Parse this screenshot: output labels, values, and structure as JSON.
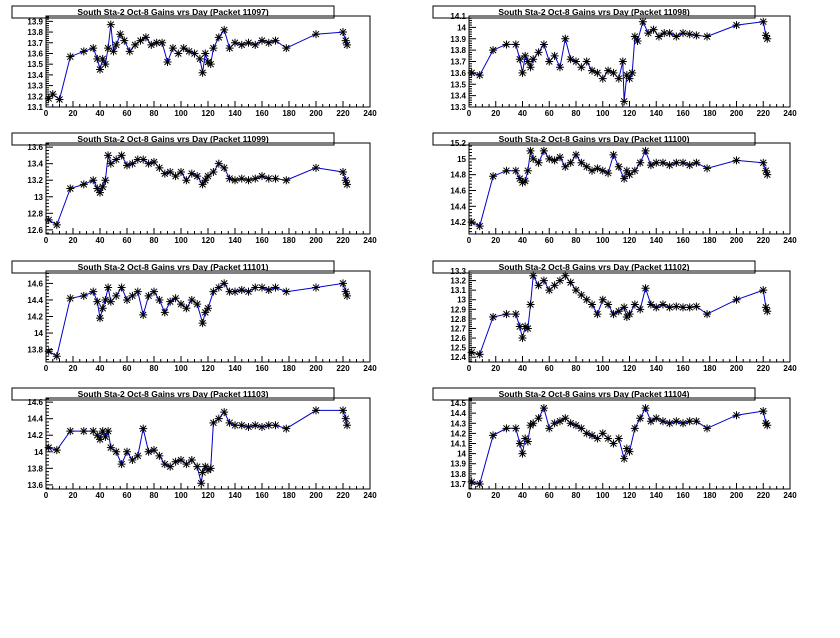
{
  "colors": {
    "line": "#0000cc",
    "marker": "#000000",
    "background": "#ffffff"
  },
  "chart_data": [
    {
      "type": "scatter",
      "title": "South Sta-2 Oct-8 Gains vrs Day (Packet 11097)",
      "xlabel": "",
      "ylabel": "",
      "xlim": [
        0,
        240
      ],
      "ylim": [
        13.1,
        13.95
      ],
      "xticks": [
        0,
        20,
        40,
        60,
        80,
        100,
        120,
        140,
        160,
        180,
        200,
        220,
        240
      ],
      "yticks": [
        "13.1",
        "13.2",
        "13.3",
        "13.4",
        "13.5",
        "13.6",
        "13.7",
        "13.8",
        "13.9"
      ],
      "series": [
        {
          "x": [
            2,
            5,
            10,
            18,
            28,
            35,
            38,
            40,
            42,
            44,
            46,
            48,
            50,
            52,
            55,
            58,
            62,
            66,
            70,
            74,
            78,
            82,
            86,
            90,
            94,
            98,
            102,
            106,
            110,
            114,
            116,
            118,
            120,
            122,
            124,
            128,
            132,
            136,
            140,
            145,
            150,
            155,
            160,
            165,
            170,
            178,
            200,
            220,
            222,
            223
          ],
          "y": [
            13.18,
            13.22,
            13.17,
            13.57,
            13.62,
            13.65,
            13.55,
            13.45,
            13.55,
            13.5,
            13.65,
            13.87,
            13.62,
            13.68,
            13.78,
            13.72,
            13.62,
            13.68,
            13.72,
            13.75,
            13.68,
            13.7,
            13.7,
            13.52,
            13.65,
            13.6,
            13.65,
            13.62,
            13.6,
            13.55,
            13.42,
            13.6,
            13.52,
            13.5,
            13.65,
            13.75,
            13.82,
            13.65,
            13.7,
            13.68,
            13.7,
            13.68,
            13.72,
            13.7,
            13.72,
            13.65,
            13.78,
            13.8,
            13.72,
            13.68
          ]
        }
      ]
    },
    {
      "type": "scatter",
      "title": "South Sta-2 Oct-8 Gains vrs Day (Packet 11098)",
      "xlabel": "",
      "ylabel": "",
      "xlim": [
        0,
        240
      ],
      "ylim": [
        13.3,
        14.1
      ],
      "xticks": [
        0,
        20,
        40,
        60,
        80,
        100,
        120,
        140,
        160,
        180,
        200,
        220,
        240
      ],
      "yticks": [
        "13.3",
        "13.4",
        "13.5",
        "13.6",
        "13.7",
        "13.8",
        "13.9",
        "14",
        "14.1"
      ],
      "series": [
        {
          "x": [
            2,
            8,
            18,
            28,
            35,
            38,
            40,
            42,
            44,
            46,
            48,
            52,
            56,
            60,
            64,
            68,
            72,
            76,
            80,
            84,
            88,
            92,
            96,
            100,
            104,
            108,
            112,
            115,
            116,
            118,
            120,
            122,
            124,
            126,
            130,
            134,
            138,
            142,
            146,
            150,
            155,
            160,
            165,
            170,
            178,
            200,
            220,
            222,
            223
          ],
          "y": [
            13.6,
            13.58,
            13.8,
            13.85,
            13.85,
            13.72,
            13.6,
            13.75,
            13.7,
            13.65,
            13.72,
            13.78,
            13.85,
            13.7,
            13.75,
            13.65,
            13.9,
            13.72,
            13.7,
            13.65,
            13.7,
            13.62,
            13.6,
            13.55,
            13.62,
            13.6,
            13.55,
            13.7,
            13.35,
            13.58,
            13.55,
            13.6,
            13.92,
            13.88,
            14.05,
            13.95,
            13.98,
            13.92,
            13.95,
            13.95,
            13.92,
            13.95,
            13.94,
            13.93,
            13.92,
            14.02,
            14.05,
            13.93,
            13.9
          ]
        }
      ]
    },
    {
      "type": "scatter",
      "title": "South Sta-2 Oct-8 Gains vrs Day (Packet 11099)",
      "xlabel": "",
      "ylabel": "",
      "xlim": [
        0,
        240
      ],
      "ylim": [
        12.55,
        13.65
      ],
      "xticks": [
        0,
        20,
        40,
        60,
        80,
        100,
        120,
        140,
        160,
        180,
        200,
        220,
        240
      ],
      "yticks": [
        "12.6",
        "12.8",
        "13",
        "13.2",
        "13.4",
        "13.6"
      ],
      "series": [
        {
          "x": [
            2,
            8,
            18,
            28,
            35,
            38,
            40,
            42,
            44,
            46,
            48,
            52,
            56,
            60,
            64,
            68,
            72,
            76,
            80,
            84,
            88,
            92,
            96,
            100,
            104,
            108,
            112,
            116,
            118,
            120,
            124,
            128,
            132,
            136,
            140,
            145,
            150,
            155,
            160,
            165,
            170,
            178,
            200,
            220,
            222,
            223
          ],
          "y": [
            12.72,
            12.66,
            13.1,
            13.15,
            13.2,
            13.1,
            13.05,
            13.12,
            13.2,
            13.5,
            13.4,
            13.45,
            13.5,
            13.38,
            13.4,
            13.45,
            13.45,
            13.4,
            13.42,
            13.35,
            13.28,
            13.3,
            13.25,
            13.3,
            13.2,
            13.28,
            13.25,
            13.15,
            13.2,
            13.25,
            13.3,
            13.4,
            13.35,
            13.22,
            13.2,
            13.22,
            13.2,
            13.22,
            13.25,
            13.22,
            13.22,
            13.2,
            13.35,
            13.3,
            13.2,
            13.15
          ]
        }
      ]
    },
    {
      "type": "scatter",
      "title": "South Sta-2 Oct-8 Gains vrs Day (Packet 11100)",
      "xlabel": "",
      "ylabel": "",
      "xlim": [
        0,
        240
      ],
      "ylim": [
        14.05,
        15.2
      ],
      "xticks": [
        0,
        20,
        40,
        60,
        80,
        100,
        120,
        140,
        160,
        180,
        200,
        220,
        240
      ],
      "yticks": [
        "14.2",
        "14.4",
        "14.6",
        "14.8",
        "15",
        "15.2"
      ],
      "series": [
        {
          "x": [
            2,
            8,
            18,
            28,
            35,
            38,
            40,
            42,
            44,
            46,
            48,
            52,
            56,
            60,
            64,
            68,
            72,
            76,
            80,
            84,
            88,
            92,
            96,
            100,
            104,
            108,
            112,
            116,
            118,
            120,
            124,
            128,
            132,
            136,
            140,
            145,
            150,
            155,
            160,
            165,
            170,
            178,
            200,
            220,
            222,
            223
          ],
          "y": [
            14.2,
            14.15,
            14.78,
            14.85,
            14.85,
            14.75,
            14.7,
            14.72,
            14.85,
            15.1,
            15.0,
            14.95,
            15.1,
            15.0,
            14.98,
            15.02,
            14.9,
            14.95,
            15.05,
            14.95,
            14.9,
            14.85,
            14.88,
            14.85,
            14.82,
            15.05,
            14.9,
            14.75,
            14.85,
            14.8,
            14.85,
            14.95,
            15.1,
            14.92,
            14.95,
            14.95,
            14.92,
            14.95,
            14.95,
            14.92,
            14.95,
            14.88,
            14.98,
            14.95,
            14.85,
            14.8
          ]
        }
      ]
    },
    {
      "type": "scatter",
      "title": "South Sta-2 Oct-8 Gains vrs Day (Packet 11101)",
      "xlabel": "",
      "ylabel": "",
      "xlim": [
        0,
        240
      ],
      "ylim": [
        13.65,
        14.75
      ],
      "xticks": [
        0,
        20,
        40,
        60,
        80,
        100,
        120,
        140,
        160,
        180,
        200,
        220,
        240
      ],
      "yticks": [
        "13.8",
        "14",
        "14.2",
        "14.4",
        "14.6"
      ],
      "series": [
        {
          "x": [
            2,
            8,
            18,
            28,
            35,
            38,
            40,
            42,
            44,
            46,
            48,
            52,
            56,
            60,
            64,
            68,
            72,
            76,
            80,
            84,
            88,
            92,
            96,
            100,
            104,
            108,
            112,
            116,
            118,
            120,
            124,
            128,
            132,
            136,
            140,
            145,
            150,
            155,
            160,
            165,
            170,
            178,
            200,
            220,
            222,
            223
          ],
          "y": [
            13.78,
            13.72,
            14.42,
            14.45,
            14.5,
            14.38,
            14.18,
            14.3,
            14.4,
            14.55,
            14.38,
            14.45,
            14.55,
            14.4,
            14.45,
            14.5,
            14.22,
            14.45,
            14.5,
            14.4,
            14.25,
            14.38,
            14.42,
            14.35,
            14.3,
            14.4,
            14.35,
            14.12,
            14.25,
            14.3,
            14.5,
            14.55,
            14.6,
            14.5,
            14.5,
            14.52,
            14.5,
            14.55,
            14.55,
            14.52,
            14.55,
            14.5,
            14.55,
            14.6,
            14.5,
            14.45
          ]
        }
      ]
    },
    {
      "type": "scatter",
      "title": "South Sta-2 Oct-8 Gains vrs Day (Packet 11102)",
      "xlabel": "",
      "ylabel": "",
      "xlim": [
        0,
        240
      ],
      "ylim": [
        12.35,
        13.3
      ],
      "xticks": [
        0,
        20,
        40,
        60,
        80,
        100,
        120,
        140,
        160,
        180,
        200,
        220,
        240
      ],
      "yticks": [
        "12.4",
        "12.5",
        "12.6",
        "12.7",
        "12.8",
        "12.9",
        "13",
        "13.1",
        "13.2",
        "13.3"
      ],
      "series": [
        {
          "x": [
            2,
            8,
            18,
            28,
            35,
            38,
            40,
            42,
            44,
            46,
            48,
            52,
            56,
            60,
            64,
            68,
            72,
            76,
            80,
            84,
            88,
            92,
            96,
            100,
            104,
            108,
            112,
            116,
            118,
            120,
            124,
            128,
            132,
            136,
            140,
            145,
            150,
            155,
            160,
            165,
            170,
            178,
            200,
            220,
            222,
            223
          ],
          "y": [
            12.45,
            12.43,
            12.82,
            12.85,
            12.85,
            12.72,
            12.6,
            12.72,
            12.7,
            12.95,
            13.25,
            13.15,
            13.2,
            13.1,
            13.15,
            13.2,
            13.25,
            13.18,
            13.1,
            13.05,
            13.0,
            12.95,
            12.85,
            13.0,
            12.95,
            12.85,
            12.88,
            12.92,
            12.82,
            12.85,
            12.95,
            12.9,
            13.12,
            12.95,
            12.92,
            12.95,
            12.92,
            12.93,
            12.92,
            12.92,
            12.93,
            12.85,
            13.0,
            13.1,
            12.92,
            12.88
          ]
        }
      ]
    },
    {
      "type": "scatter",
      "title": "South Sta-2 Oct-8 Gains vrs Day (Packet 11103)",
      "xlabel": "",
      "ylabel": "",
      "xlim": [
        0,
        240
      ],
      "ylim": [
        13.55,
        14.65
      ],
      "xticks": [
        0,
        20,
        40,
        60,
        80,
        100,
        120,
        140,
        160,
        180,
        200,
        220,
        240
      ],
      "yticks": [
        "13.6",
        "13.8",
        "14",
        "14.2",
        "14.4",
        "14.6"
      ],
      "series": [
        {
          "x": [
            2,
            8,
            18,
            28,
            35,
            38,
            40,
            42,
            44,
            46,
            48,
            52,
            56,
            60,
            64,
            68,
            72,
            76,
            80,
            84,
            88,
            92,
            96,
            100,
            104,
            108,
            112,
            115,
            116,
            118,
            120,
            122,
            124,
            128,
            132,
            136,
            140,
            145,
            150,
            155,
            160,
            165,
            170,
            178,
            200,
            220,
            222,
            223
          ],
          "y": [
            14.05,
            14.02,
            14.25,
            14.25,
            14.25,
            14.2,
            14.15,
            14.25,
            14.18,
            14.25,
            14.05,
            14.0,
            13.85,
            14.0,
            13.9,
            13.95,
            14.28,
            14.0,
            14.02,
            13.95,
            13.85,
            13.82,
            13.88,
            13.9,
            13.85,
            13.9,
            13.82,
            13.62,
            13.75,
            13.82,
            13.78,
            13.8,
            14.35,
            14.4,
            14.48,
            14.35,
            14.32,
            14.32,
            14.3,
            14.32,
            14.3,
            14.32,
            14.32,
            14.28,
            14.5,
            14.5,
            14.4,
            14.32
          ]
        }
      ]
    },
    {
      "type": "scatter",
      "title": "South Sta-2 Oct-8 Gains vrs Day (Packet 11104)",
      "xlabel": "",
      "ylabel": "",
      "xlim": [
        0,
        240
      ],
      "ylim": [
        13.65,
        14.55
      ],
      "xticks": [
        0,
        20,
        40,
        60,
        80,
        100,
        120,
        140,
        160,
        180,
        200,
        220,
        240
      ],
      "yticks": [
        "13.7",
        "13.8",
        "13.9",
        "14",
        "14.1",
        "14.2",
        "14.3",
        "14.4",
        "14.5"
      ],
      "series": [
        {
          "x": [
            2,
            8,
            18,
            28,
            35,
            38,
            40,
            42,
            44,
            46,
            48,
            52,
            56,
            60,
            64,
            68,
            72,
            76,
            80,
            84,
            88,
            92,
            96,
            100,
            104,
            108,
            112,
            116,
            118,
            120,
            124,
            128,
            132,
            136,
            140,
            145,
            150,
            155,
            160,
            165,
            170,
            178,
            200,
            220,
            222,
            223
          ],
          "y": [
            13.72,
            13.7,
            14.18,
            14.25,
            14.25,
            14.1,
            14.0,
            14.15,
            14.12,
            14.28,
            14.3,
            14.35,
            14.45,
            14.25,
            14.3,
            14.32,
            14.35,
            14.3,
            14.28,
            14.25,
            14.2,
            14.18,
            14.15,
            14.2,
            14.15,
            14.1,
            14.15,
            13.95,
            14.05,
            14.02,
            14.25,
            14.35,
            14.45,
            14.32,
            14.35,
            14.32,
            14.3,
            14.32,
            14.3,
            14.32,
            14.32,
            14.25,
            14.38,
            14.42,
            14.3,
            14.28
          ]
        }
      ]
    }
  ]
}
